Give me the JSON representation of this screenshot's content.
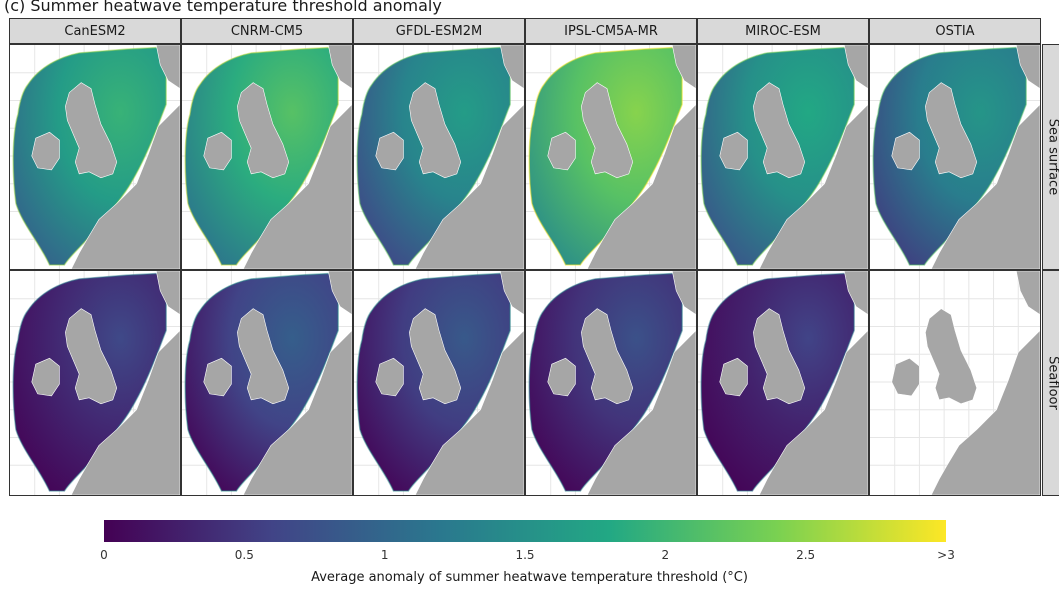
{
  "figure": {
    "title": "(…) …ay … … … … …p…",
    "title_visible": "(c) Summer heatwave temperature threshold anomaly"
  },
  "columns": [
    {
      "label": "CanESM2",
      "surface_level": 0.55,
      "seafloor_level": 0.12
    },
    {
      "label": "CNRM-CM5",
      "surface_level": 0.62,
      "seafloor_level": 0.2
    },
    {
      "label": "GFDL-ESM2M",
      "surface_level": 0.45,
      "seafloor_level": 0.18
    },
    {
      "label": "IPSL-CM5A-MR",
      "surface_level": 0.72,
      "seafloor_level": 0.15
    },
    {
      "label": "MIROC-ESM",
      "surface_level": 0.5,
      "seafloor_level": 0.1
    },
    {
      "label": "OSTIA",
      "surface_level": 0.42,
      "seafloor_level": null
    }
  ],
  "rows": [
    {
      "label": "Sea surface"
    },
    {
      "label": "Seafloor"
    }
  ],
  "legend": {
    "label": "Average anomaly of summer heatwave temperature threshold (°C)",
    "ticks": [
      "0",
      "0.5",
      "1",
      "1.5",
      "2",
      "2.5",
      ">3"
    ],
    "tick_values": [
      0,
      0.5,
      1,
      1.5,
      2,
      2.5,
      3
    ],
    "min": 0,
    "max": 3,
    "palette": "viridis",
    "colors": [
      "#440154",
      "#414487",
      "#2a788e",
      "#22a884",
      "#7ad151",
      "#fde725"
    ]
  },
  "colors": {
    "land": "#a6a6a6",
    "strip": "#d9d9d9",
    "grid": "#e6e6e6"
  }
}
